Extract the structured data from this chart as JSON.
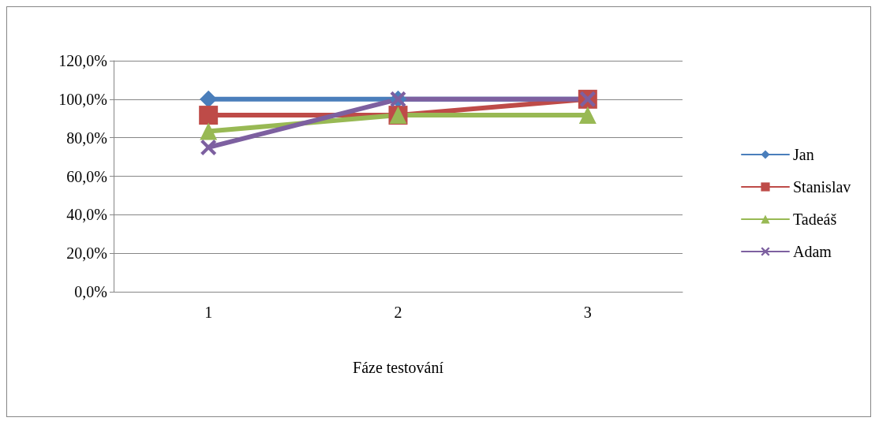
{
  "chart_data": {
    "type": "line",
    "xlabel": "Fáze testování",
    "categories": [
      "1",
      "2",
      "3"
    ],
    "series": [
      {
        "name": "Jan",
        "color": "#4a7ebb",
        "marker": "diamond",
        "values": [
          100,
          100,
          100
        ]
      },
      {
        "name": "Stanislav",
        "color": "#be4b48",
        "marker": "square",
        "values": [
          91.7,
          91.7,
          100
        ]
      },
      {
        "name": "Tadeáš",
        "color": "#98b954",
        "marker": "triangle",
        "values": [
          83.3,
          91.7,
          91.7
        ]
      },
      {
        "name": "Adam",
        "color": "#7d60a0",
        "marker": "cross",
        "values": [
          75,
          100,
          100
        ]
      }
    ],
    "ylim": [
      0,
      120
    ],
    "yticks": [
      {
        "value": 0,
        "label": "0,0%"
      },
      {
        "value": 20,
        "label": "20,0%"
      },
      {
        "value": 40,
        "label": "40,0%"
      },
      {
        "value": 60,
        "label": "60,0%"
      },
      {
        "value": 80,
        "label": "80,0%"
      },
      {
        "value": 100,
        "label": "100,0%"
      },
      {
        "value": 120,
        "label": "120,0%"
      }
    ],
    "grid": "y",
    "legend": "right",
    "line_style": "solid"
  }
}
